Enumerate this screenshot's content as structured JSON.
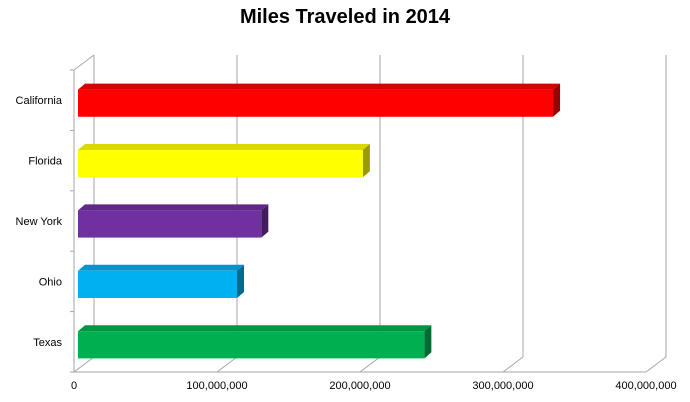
{
  "chart_data": {
    "type": "bar",
    "orientation": "horizontal",
    "style": "3d",
    "title": "Miles Traveled in 2014",
    "xlabel": "",
    "ylabel": "",
    "categories": [
      "California",
      "Florida",
      "New York",
      "Ohio",
      "Texas"
    ],
    "values": [
      335000000,
      202000000,
      131000000,
      114000000,
      245000000
    ],
    "colors": [
      "#ff0000",
      "#ffff00",
      "#7030a0",
      "#00b0f0",
      "#00b050"
    ],
    "xlim": [
      0,
      400000000
    ],
    "xticks": [
      "0",
      "100,000,000",
      "200,000,000",
      "300,000,000",
      "400,000,000"
    ],
    "grid": true,
    "legend": "none"
  }
}
